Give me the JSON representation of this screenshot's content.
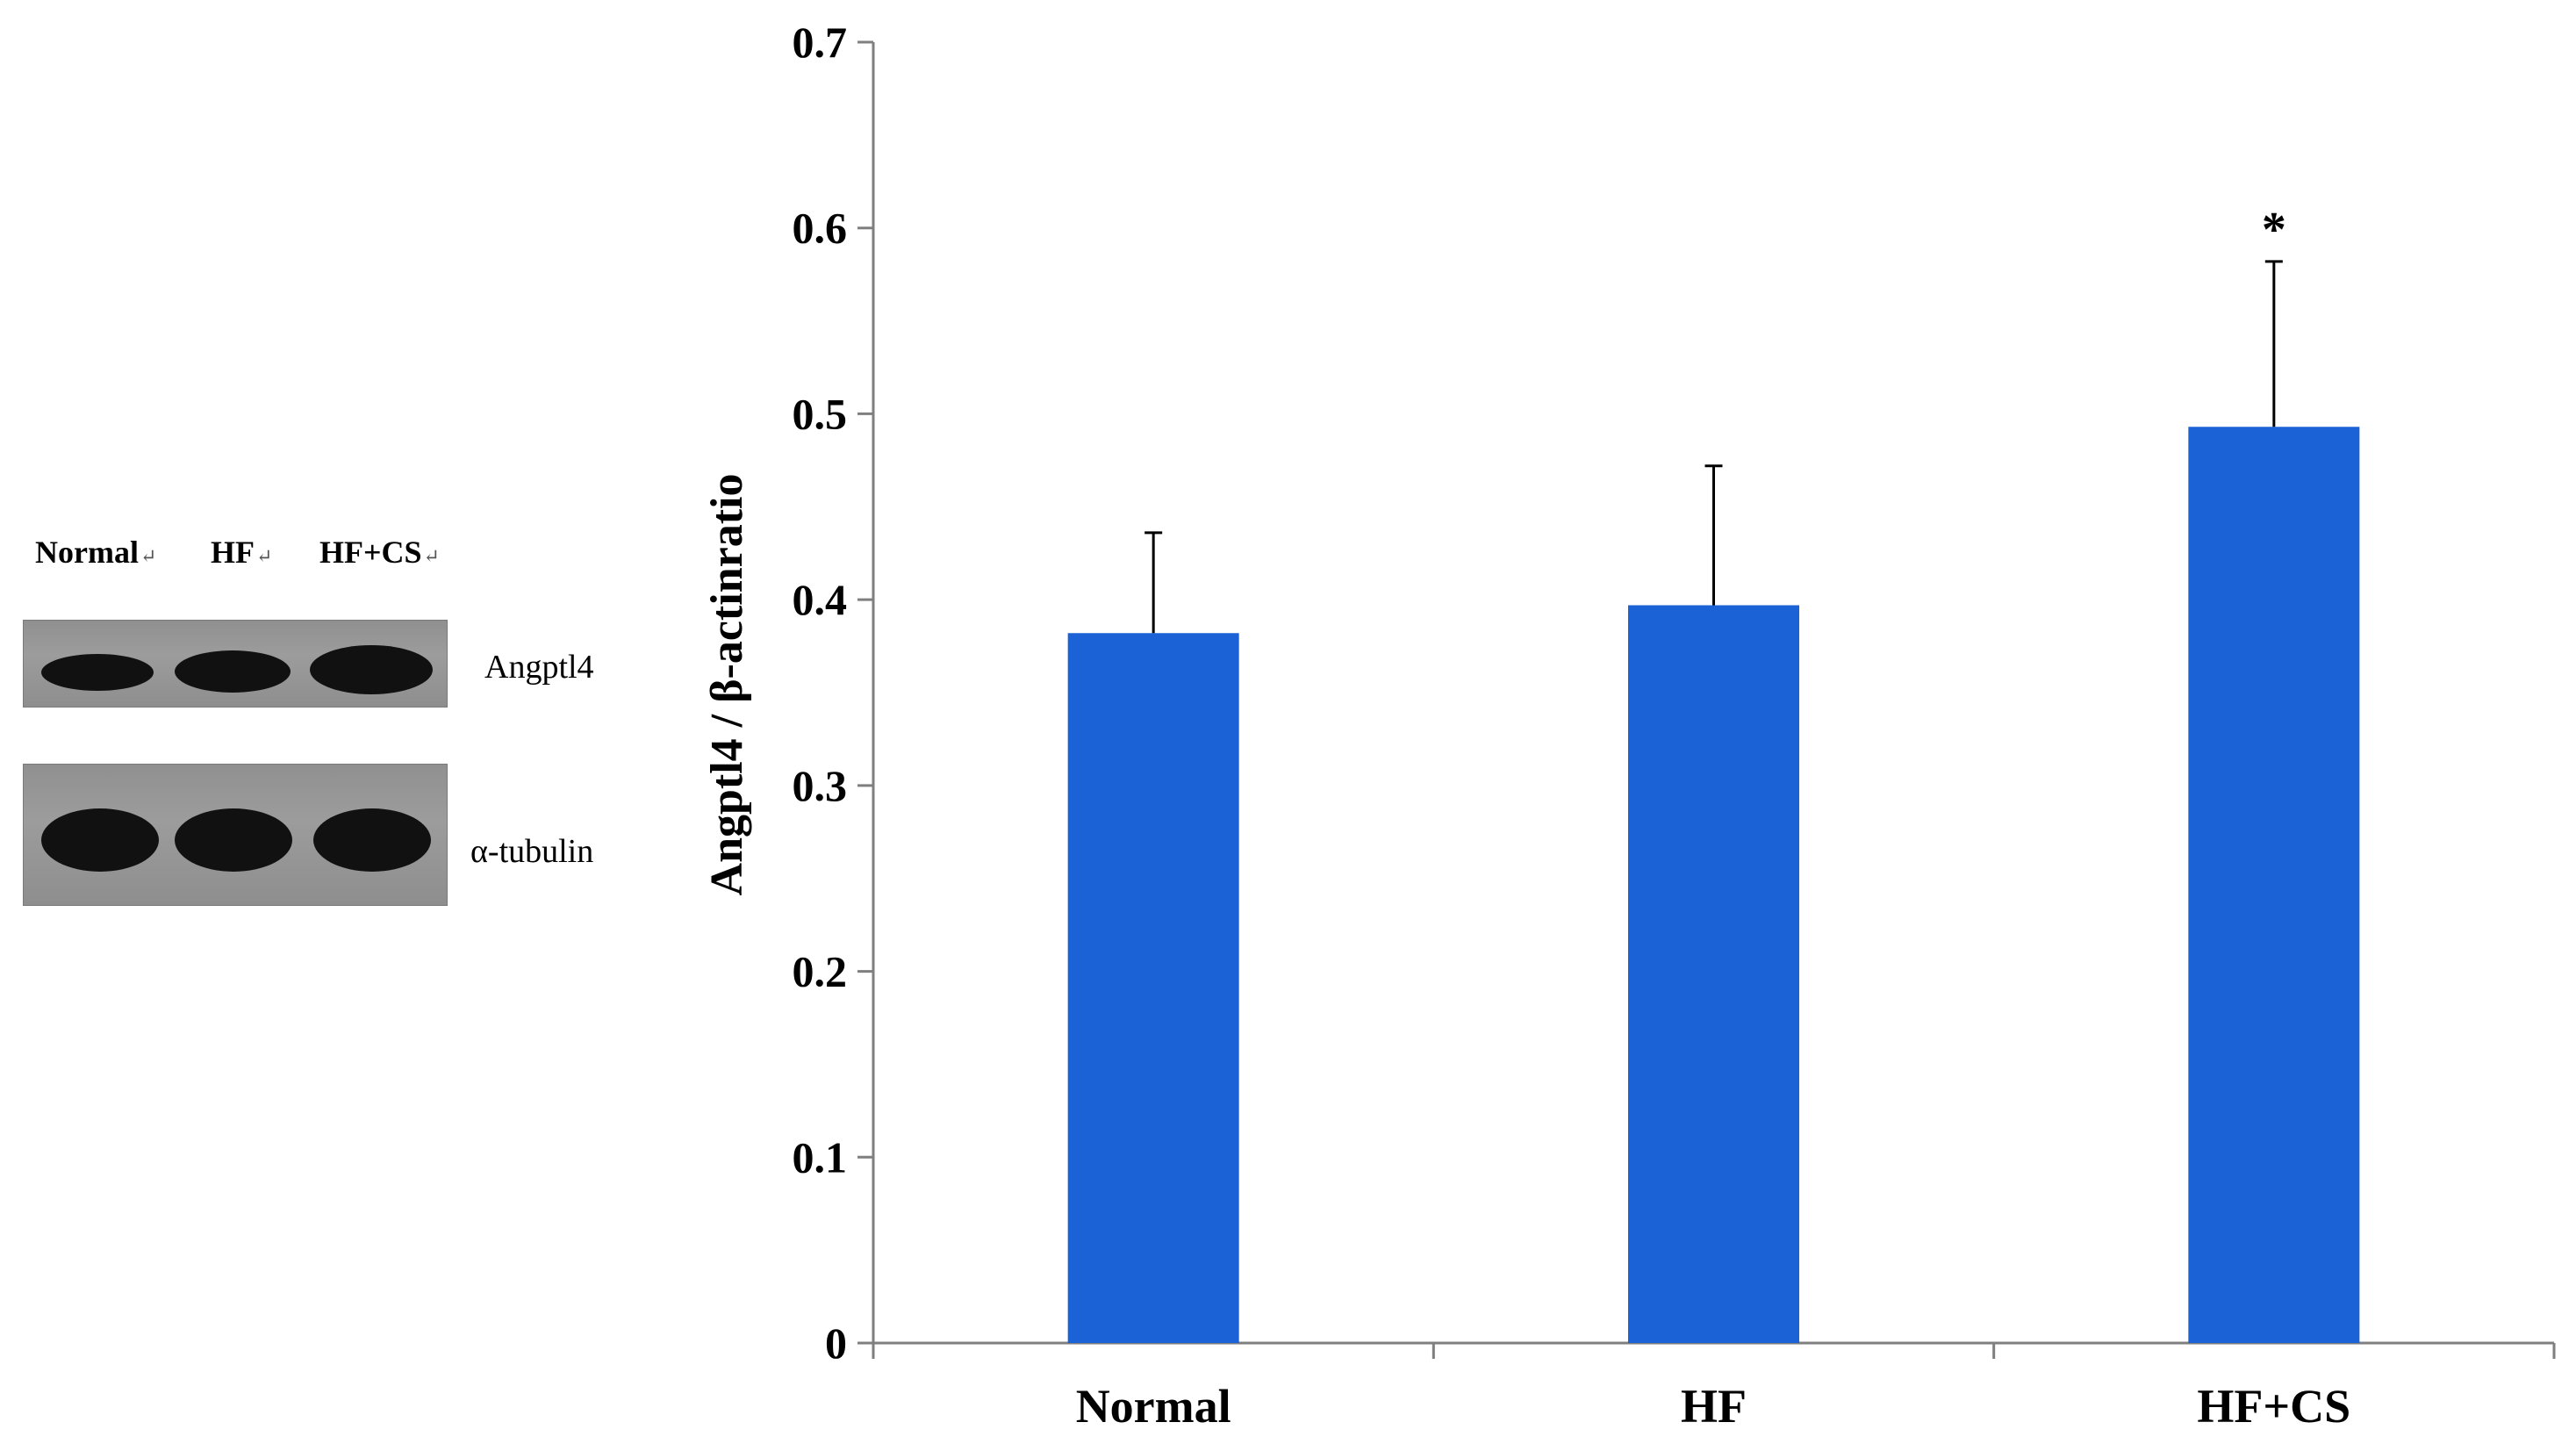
{
  "blot": {
    "lanes": [
      "Normal",
      "HF",
      "HF+CS"
    ],
    "return_mark": "↵",
    "rows": [
      "Angptl4",
      "α-tubulin"
    ]
  },
  "chart_data": {
    "type": "bar",
    "categories": [
      "Normal",
      "HF",
      "HF+CS"
    ],
    "series": [
      {
        "values": [
          0.382,
          0.397,
          0.493
        ],
        "error": [
          0.054,
          0.075,
          0.089
        ]
      }
    ],
    "annotations": [
      {
        "category": "HF+CS",
        "text": "*"
      }
    ],
    "title": "",
    "xlabel": "",
    "ylabel": "Angptl4 / β-actinratio",
    "ylim": [
      0,
      0.7
    ],
    "yticks": [
      "0",
      "0.1",
      "0.2",
      "0.3",
      "0.4",
      "0.5",
      "0.6",
      "0.7"
    ],
    "grid": false,
    "bar_color": "#1a62d6"
  }
}
